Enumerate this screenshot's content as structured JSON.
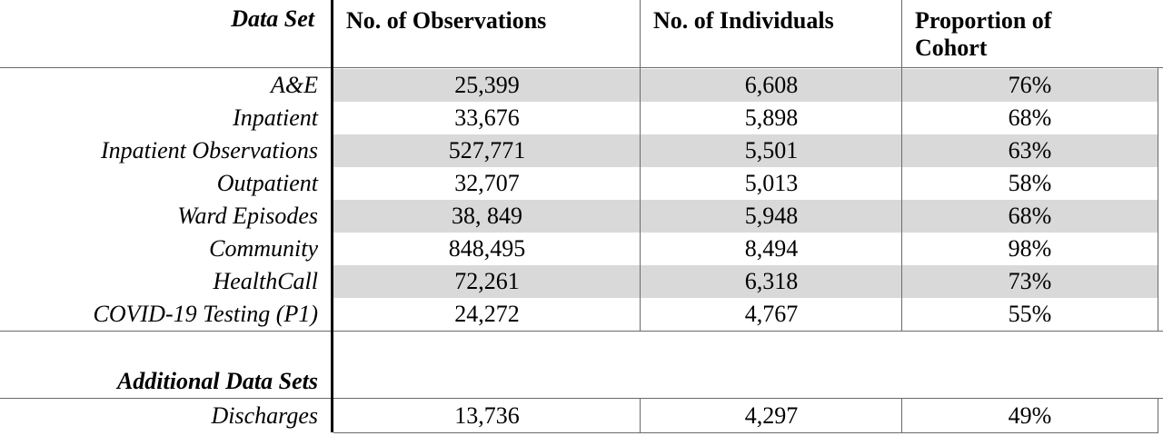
{
  "header": {
    "data_set": "Data Set",
    "observations": "No. of Observations",
    "individuals": "No. of Individuals",
    "proportion_line1": "Proportion of",
    "proportion_line2": "Cohort"
  },
  "rows": [
    {
      "name": "A&E",
      "observations": "25,399",
      "individuals": "6,608",
      "proportion": "76%"
    },
    {
      "name": "Inpatient",
      "observations": "33,676",
      "individuals": "5,898",
      "proportion": "68%"
    },
    {
      "name": "Inpatient Observations",
      "observations": "527,771",
      "individuals": "5,501",
      "proportion": "63%"
    },
    {
      "name": "Outpatient",
      "observations": "32,707",
      "individuals": "5,013",
      "proportion": "58%"
    },
    {
      "name": "Ward Episodes",
      "observations": "38, 849",
      "individuals": "5,948",
      "proportion": "68%"
    },
    {
      "name": "Community",
      "observations": "848,495",
      "individuals": "8,494",
      "proportion": "98%"
    },
    {
      "name": "HealthCall",
      "observations": "72,261",
      "individuals": "6,318",
      "proportion": "73%"
    },
    {
      "name": "COVID-19 Testing (P1)",
      "observations": "24,272",
      "individuals": "4,767",
      "proportion": "55%"
    }
  ],
  "additional": {
    "heading": "Additional Data Sets",
    "row": {
      "name": "Discharges",
      "observations": "13,736",
      "individuals": "4,297",
      "proportion": "49%"
    }
  }
}
